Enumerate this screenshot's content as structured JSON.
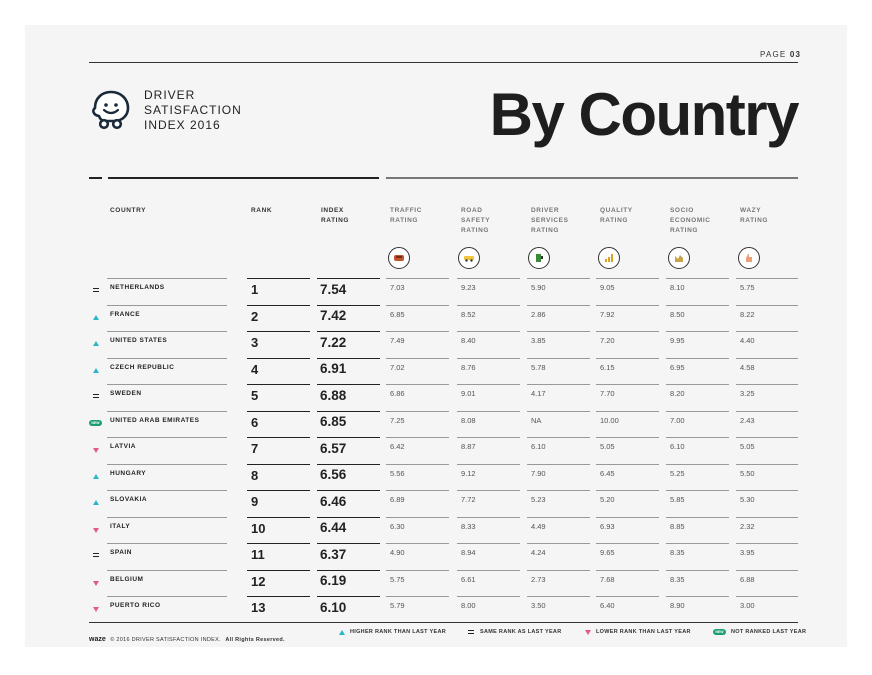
{
  "header": {
    "page_label": "PAGE",
    "page_number": "03",
    "brand_line1": "DRIVER",
    "brand_line2": "SATISFACTION",
    "brand_line3": "INDEX 2016",
    "title": "By Country"
  },
  "columns": {
    "country": "COUNTRY",
    "rank": "RANK",
    "index_rating": [
      "INDEX",
      "RATING"
    ],
    "traffic": [
      "TRAFFIC",
      "RATING"
    ],
    "road_safety": [
      "ROAD",
      "SAFETY",
      "RATING"
    ],
    "driver_services": [
      "DRIVER",
      "SERVICES",
      "RATING"
    ],
    "quality": [
      "QUALITY",
      "RATING"
    ],
    "socio_economic": [
      "SOCIO",
      "ECONOMIC",
      "RATING"
    ],
    "wazy": [
      "WAZY",
      "RATING"
    ]
  },
  "icons": [
    "traffic-icon",
    "road-safety-icon",
    "driver-services-icon",
    "quality-icon",
    "socio-economic-icon",
    "wazy-icon"
  ],
  "rows": [
    {
      "change": "same",
      "country": "NETHERLANDS",
      "rank": "1",
      "index": "7.54",
      "vals": [
        "7.03",
        "9.23",
        "5.90",
        "9.05",
        "8.10",
        "5.75"
      ]
    },
    {
      "change": "up",
      "country": "FRANCE",
      "rank": "2",
      "index": "7.42",
      "vals": [
        "6.85",
        "8.52",
        "2.86",
        "7.92",
        "8.50",
        "8.22"
      ]
    },
    {
      "change": "up",
      "country": "UNITED STATES",
      "rank": "3",
      "index": "7.22",
      "vals": [
        "7.49",
        "8.40",
        "3.85",
        "7.20",
        "9.95",
        "4.40"
      ]
    },
    {
      "change": "up",
      "country": "CZECH REPUBLIC",
      "rank": "4",
      "index": "6.91",
      "vals": [
        "7.02",
        "8.76",
        "5.78",
        "6.15",
        "6.95",
        "4.58"
      ]
    },
    {
      "change": "same",
      "country": "SWEDEN",
      "rank": "5",
      "index": "6.88",
      "vals": [
        "6.86",
        "9.01",
        "4.17",
        "7.70",
        "8.20",
        "3.25"
      ]
    },
    {
      "change": "new",
      "country": "UNITED ARAB EMIRATES",
      "rank": "6",
      "index": "6.85",
      "vals": [
        "7.25",
        "8.08",
        "NA",
        "10.00",
        "7.00",
        "2.43"
      ]
    },
    {
      "change": "down",
      "country": "LATVIA",
      "rank": "7",
      "index": "6.57",
      "vals": [
        "6.42",
        "8.87",
        "6.10",
        "5.05",
        "6.10",
        "5.05"
      ]
    },
    {
      "change": "up",
      "country": "HUNGARY",
      "rank": "8",
      "index": "6.56",
      "vals": [
        "5.56",
        "9.12",
        "7.90",
        "6.45",
        "5.25",
        "5.50"
      ]
    },
    {
      "change": "up",
      "country": "SLOVAKIA",
      "rank": "9",
      "index": "6.46",
      "vals": [
        "6.89",
        "7.72",
        "5.23",
        "5.20",
        "5.85",
        "5.30"
      ]
    },
    {
      "change": "down",
      "country": "ITALY",
      "rank": "10",
      "index": "6.44",
      "vals": [
        "6.30",
        "8.33",
        "4.49",
        "6.93",
        "8.85",
        "2.32"
      ]
    },
    {
      "change": "same",
      "country": "SPAIN",
      "rank": "11",
      "index": "6.37",
      "vals": [
        "4.90",
        "8.94",
        "4.24",
        "9.65",
        "8.35",
        "3.95"
      ]
    },
    {
      "change": "down",
      "country": "BELGIUM",
      "rank": "12",
      "index": "6.19",
      "vals": [
        "5.75",
        "6.61",
        "2.73",
        "7.68",
        "8.35",
        "6.88"
      ]
    },
    {
      "change": "down",
      "country": "PUERTO RICO",
      "rank": "13",
      "index": "6.10",
      "vals": [
        "5.79",
        "8.00",
        "3.50",
        "6.40",
        "8.90",
        "3.00"
      ]
    }
  ],
  "footer": {
    "waze": "waze",
    "copyright": "© 2016 DRIVER SATISFACTION INDEX.",
    "rights": "All Rights Reserved.",
    "legend_up": "HIGHER RANK THAN LAST YEAR",
    "legend_same": "SAME RANK AS LAST YEAR",
    "legend_down": "LOWER RANK THAN LAST YEAR",
    "legend_new": "NOT RANKED LAST YEAR",
    "new_badge": "NEW"
  },
  "colors": {
    "up": "#2bb7c9",
    "down": "#e25b82",
    "new": "#1a9e6e"
  }
}
